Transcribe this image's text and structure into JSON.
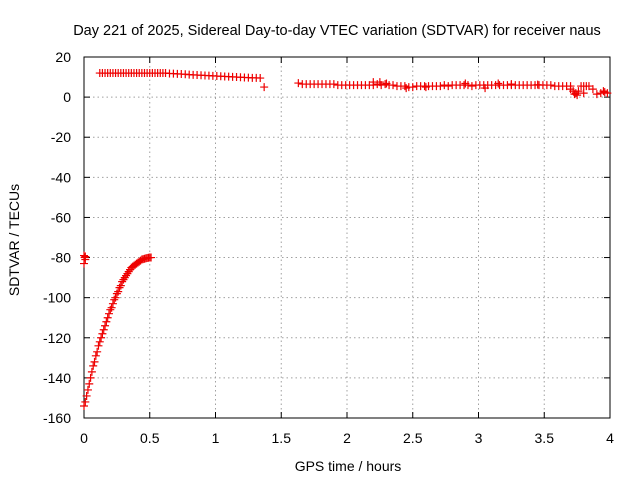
{
  "chart_data": {
    "type": "scatter",
    "title": "Day 221 of 2025, Sidereal Day-to-day VTEC variation (SDTVAR) for receiver naus",
    "xlabel": "GPS time / hours",
    "ylabel": "SDTVAR / TECUs",
    "xlim": [
      0,
      4
    ],
    "ylim": [
      -160,
      20
    ],
    "xticks": [
      "0",
      "0.5",
      "1",
      "1.5",
      "2",
      "2.5",
      "3",
      "3.5",
      "4"
    ],
    "yticks": [
      "20",
      "0",
      "-20",
      "-40",
      "-60",
      "-80",
      "-100",
      "-120",
      "-140",
      "-160"
    ],
    "grid": true,
    "legend": "none",
    "marker": "plus",
    "marker_color": "#ee0000",
    "series": [
      {
        "x": [
          0.0,
          0.01,
          0.02,
          0.03,
          0.04,
          0.05,
          0.06,
          0.07,
          0.08,
          0.09,
          0.1,
          0.11,
          0.12,
          0.13,
          0.14,
          0.15,
          0.16,
          0.17,
          0.18,
          0.19,
          0.2,
          0.21,
          0.22,
          0.23,
          0.24,
          0.25,
          0.26,
          0.27,
          0.28,
          0.29,
          0.3,
          0.31,
          0.32,
          0.33,
          0.34,
          0.35,
          0.36,
          0.37,
          0.38,
          0.39,
          0.4,
          0.41,
          0.42,
          0.43,
          0.44,
          0.45,
          0.46,
          0.47,
          0.48,
          0.49,
          0.5,
          0.51
        ],
        "y": [
          -154,
          -152,
          -149,
          -146,
          -143,
          -140,
          -137,
          -134,
          -132,
          -129,
          -127,
          -124,
          -122,
          -120,
          -118,
          -116,
          -114,
          -112,
          -110,
          -108,
          -106,
          -105,
          -103,
          -101,
          -100,
          -98,
          -97,
          -95,
          -94,
          -92,
          -91,
          -90,
          -89,
          -88,
          -87,
          -86,
          -85,
          -84.5,
          -84,
          -83.5,
          -83,
          -82.5,
          -82,
          -81.5,
          -81,
          -80.8,
          -80.6,
          -80.4,
          -80.2,
          -80.1,
          -80,
          -80
        ]
      },
      {
        "x": [
          0.0,
          0.005,
          0.01,
          0.0,
          0.01
        ],
        "y": [
          -79,
          -80,
          -81,
          -83,
          -79.5
        ]
      },
      {
        "x": [
          0.12,
          0.14,
          0.16,
          0.18,
          0.2,
          0.22,
          0.24,
          0.26,
          0.28,
          0.3,
          0.32,
          0.34,
          0.36,
          0.38,
          0.4,
          0.42,
          0.44,
          0.46,
          0.48,
          0.5,
          0.52,
          0.54,
          0.56,
          0.58,
          0.6,
          0.62,
          0.65,
          0.68,
          0.71,
          0.74,
          0.77,
          0.8,
          0.83,
          0.86,
          0.89,
          0.92,
          0.95,
          0.98,
          1.01,
          1.04,
          1.07,
          1.1,
          1.13,
          1.16,
          1.19,
          1.22,
          1.25,
          1.28,
          1.31,
          1.34,
          1.37
        ],
        "y": [
          12,
          12,
          12,
          12,
          12,
          12,
          12,
          12,
          12,
          12,
          12,
          12,
          12,
          12,
          12,
          12,
          12,
          12,
          12,
          12,
          12,
          12,
          12,
          12,
          12,
          12,
          11.8,
          11.7,
          11.6,
          11.5,
          11.4,
          11.2,
          11.1,
          11,
          10.9,
          10.8,
          10.7,
          10.6,
          10.5,
          10.4,
          10.3,
          10.2,
          10.1,
          10,
          9.9,
          9.8,
          9.7,
          9.6,
          9.6,
          9.5,
          5
        ]
      },
      {
        "x": [
          1.63,
          1.66,
          1.69,
          1.72,
          1.75,
          1.78,
          1.81,
          1.84,
          1.87,
          1.9,
          1.93,
          1.96,
          1.99,
          2.02,
          2.05,
          2.08,
          2.11,
          2.14,
          2.17,
          2.2,
          2.23,
          2.26,
          2.29,
          2.32,
          2.35,
          2.38,
          2.41,
          2.44,
          2.47,
          2.5,
          2.53,
          2.56,
          2.59,
          2.62,
          2.65,
          2.68,
          2.71,
          2.74,
          2.77,
          2.8,
          2.83,
          2.86,
          2.89,
          2.92,
          2.95,
          2.98,
          3.01,
          3.04,
          3.07,
          3.1,
          3.13,
          3.16,
          3.19,
          3.22,
          3.25,
          3.28,
          3.31,
          3.34,
          3.37,
          3.4,
          3.43,
          3.46,
          3.49,
          3.52,
          3.55,
          3.58,
          3.61,
          3.64,
          3.67,
          3.7,
          3.72,
          3.74,
          3.76,
          3.78,
          3.8,
          3.82,
          3.84,
          3.87,
          3.9,
          3.93,
          3.96
        ],
        "y": [
          7,
          6.5,
          6.5,
          6.5,
          6.5,
          6.5,
          6.5,
          6.5,
          6.5,
          6.5,
          6,
          6,
          6,
          6,
          6,
          6,
          6,
          6,
          6,
          6,
          6.5,
          6,
          6.5,
          6,
          6,
          5.5,
          5.5,
          5.5,
          5,
          5,
          5.5,
          5.5,
          5.5,
          5.5,
          5.5,
          5.5,
          5.5,
          6,
          5.5,
          6,
          6,
          6,
          6,
          6,
          5.5,
          6,
          6,
          6,
          6,
          6,
          6,
          6,
          6,
          6,
          6,
          6,
          6,
          6,
          6,
          6,
          6,
          6,
          6,
          6,
          6,
          5.5,
          5.5,
          5.5,
          5.5,
          5.5,
          3,
          2,
          3,
          5.5,
          5.5,
          5.5,
          5.5,
          4,
          1.5,
          2,
          2.5
        ]
      },
      {
        "x": [
          2.2,
          2.25,
          2.3,
          2.45,
          2.6,
          2.9,
          3.05,
          3.15,
          3.25,
          3.45,
          3.7,
          3.73,
          3.75,
          3.8,
          3.95,
          3.98
        ],
        "y": [
          7.5,
          7.5,
          6.8,
          4.5,
          5,
          6.8,
          4.5,
          6.8,
          6.5,
          6.2,
          4,
          1.5,
          1,
          2,
          3,
          2
        ]
      }
    ]
  }
}
